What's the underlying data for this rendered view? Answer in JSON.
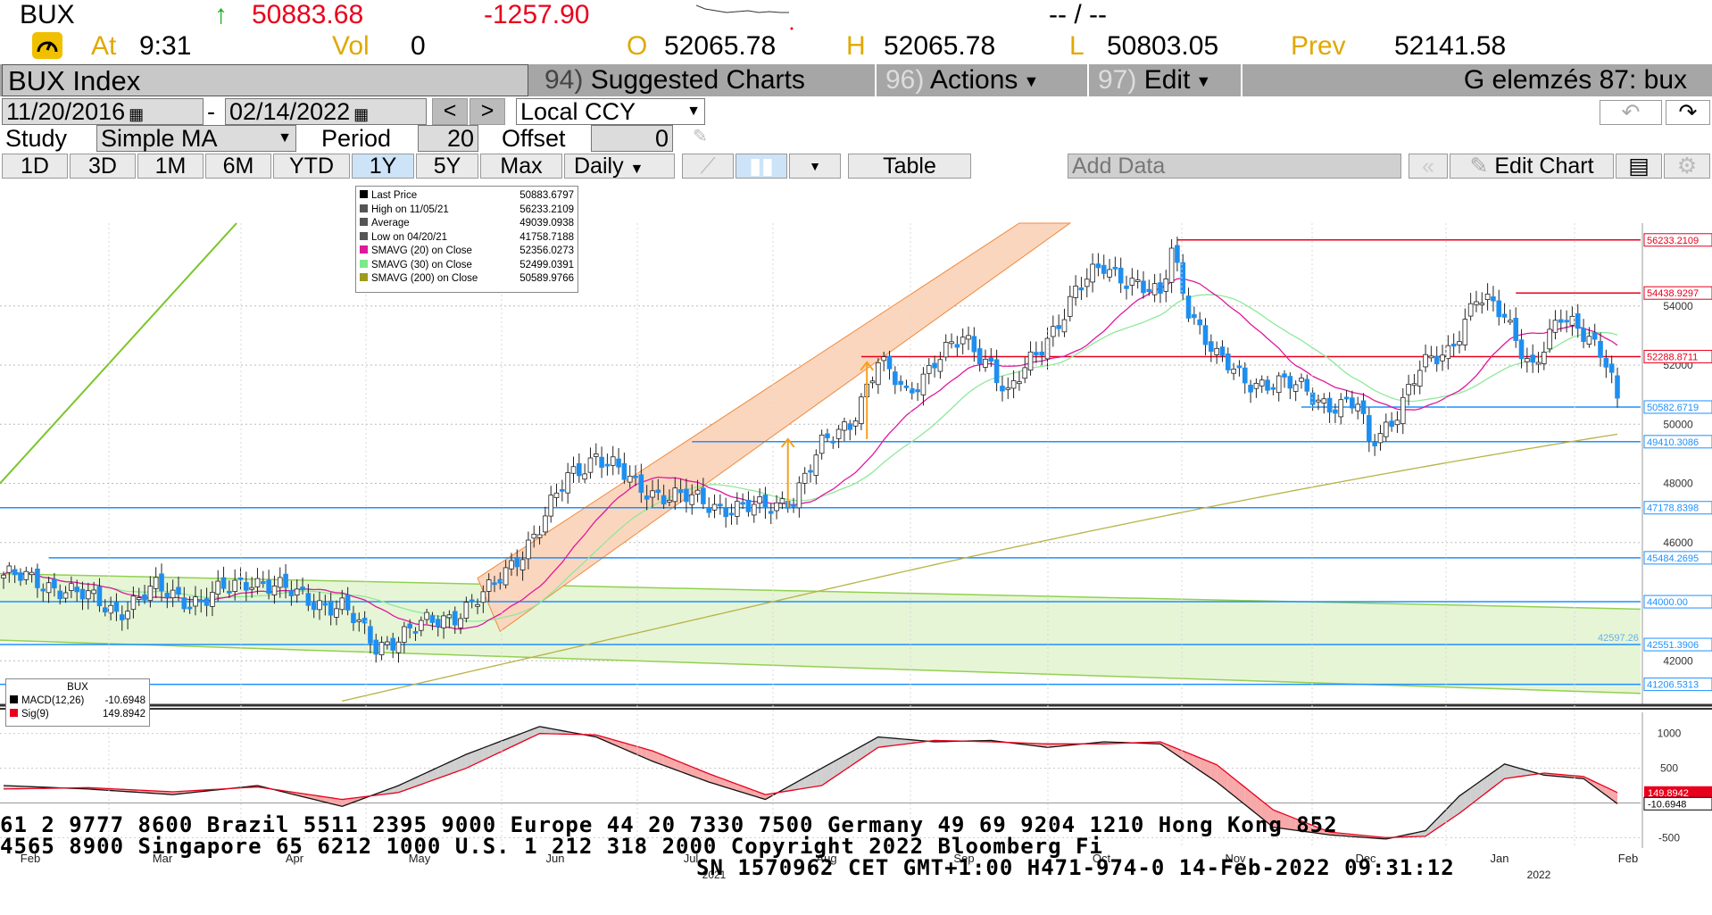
{
  "quote": {
    "ticker": "BUX",
    "last": "50883.68",
    "change": "-1257.90",
    "time_label": "At",
    "time": "9:31",
    "vol_label": "Vol",
    "vol": "0",
    "open_label": "O",
    "open": "52065.78",
    "high_label": "H",
    "high": "52065.78",
    "low_label": "L",
    "low": "50803.05",
    "prev_label": "Prev",
    "prev": "52141.58",
    "bidask": "-- / --",
    "up_arrow": "up-arrow-icon"
  },
  "menubar": {
    "title": "BUX Index",
    "suggested_num": "94)",
    "suggested": "Suggested Charts",
    "actions_num": "96)",
    "actions": "Actions",
    "edit_num": "97)",
    "edit": "Edit",
    "right_title": "G elemzés 87: bux"
  },
  "controls": {
    "start_date": "11/20/2016",
    "dash": "-",
    "end_date": "02/14/2022",
    "prev": "<",
    "next": ">",
    "currency": "Local CCY",
    "study_label": "Study",
    "study": "Simple MA",
    "period_label": "Period",
    "period": "20",
    "offset_label": "Offset",
    "offset": "0",
    "ranges": [
      "1D",
      "3D",
      "1M",
      "6M",
      "YTD",
      "1Y",
      "5Y",
      "Max"
    ],
    "selected_range": "1Y",
    "frequency": "Daily",
    "table": "Table",
    "add_data": "Add Data",
    "edit_chart": "Edit Chart"
  },
  "legend": [
    {
      "name": "Last Price",
      "value": "50883.6797",
      "color": "#000000"
    },
    {
      "name": "High on 11/05/21",
      "value": "56233.2109",
      "color": "#555555"
    },
    {
      "name": "Average",
      "value": "49039.0938",
      "color": "#555555"
    },
    {
      "name": "Low on 04/20/21",
      "value": "41758.7188",
      "color": "#555555"
    },
    {
      "name": "SMAVG (20)  on Close",
      "value": "52356.0273",
      "color": "#e0189b"
    },
    {
      "name": "SMAVG (30)  on Close",
      "value": "52499.0391",
      "color": "#7fe88a"
    },
    {
      "name": "SMAVG (200)  on Close",
      "value": "50589.9766",
      "color": "#9e9a1c"
    }
  ],
  "macd_legend": {
    "title": "BUX",
    "items": [
      {
        "name": "MACD(12,26)",
        "value": "-10.6948",
        "color": "#000000"
      },
      {
        "name": "Sig(9)",
        "value": "149.8942",
        "color": "#e8001c"
      }
    ]
  },
  "chart_data": {
    "type": "candlestick",
    "ylim": [
      40500,
      56800
    ],
    "yticks": [
      42000,
      44000,
      46000,
      48000,
      50000,
      52000,
      54000
    ],
    "months": [
      "Feb",
      "Mar",
      "Apr",
      "May",
      "Jun",
      "Jul",
      "Aug",
      "Sep",
      "Oct",
      "Nov",
      "Dec",
      "Jan",
      "Feb"
    ],
    "year_labels": [
      "2021",
      "2022"
    ],
    "price_labels": [
      {
        "value": 56233.2109,
        "text": "56233.2109",
        "color": "#e8001c"
      },
      {
        "value": 54438.9297,
        "text": "54438.9297",
        "color": "#e8001c"
      },
      {
        "value": 52288.8711,
        "text": "52288.8711",
        "color": "#e8001c"
      },
      {
        "value": 50582.6719,
        "text": "50582.6719",
        "color": "#1e90ff"
      },
      {
        "value": 49410.3086,
        "text": "49410.3086",
        "color": "#1e90ff"
      },
      {
        "value": 47178.8398,
        "text": "47178.8398",
        "color": "#1e90ff"
      },
      {
        "value": 45484.2695,
        "text": "45484.2695",
        "color": "#1e90ff"
      },
      {
        "value": 44000.0,
        "text": "44000.00",
        "color": "#1e90ff"
      },
      {
        "value": 42551.3906,
        "text": "42551.3906",
        "color": "#1e90ff"
      },
      {
        "value": 41206.5313,
        "text": "41206.5313",
        "color": "#1e90ff"
      }
    ],
    "extra_label": "42597.26",
    "close_path": [
      [
        0,
        44900
      ],
      [
        10,
        44500
      ],
      [
        20,
        43700
      ],
      [
        27,
        44400
      ],
      [
        35,
        44000
      ],
      [
        44,
        44800
      ],
      [
        52,
        44200
      ],
      [
        60,
        43800
      ],
      [
        66,
        42500
      ],
      [
        72,
        43000
      ],
      [
        80,
        43600
      ],
      [
        86,
        44300
      ],
      [
        95,
        46500
      ],
      [
        100,
        48200
      ],
      [
        105,
        49000
      ],
      [
        112,
        47900
      ],
      [
        118,
        47600
      ],
      [
        125,
        47300
      ],
      [
        130,
        47200
      ],
      [
        135,
        47100
      ],
      [
        140,
        47600
      ],
      [
        145,
        49200
      ],
      [
        150,
        50100
      ],
      [
        155,
        52100
      ],
      [
        160,
        51000
      ],
      [
        165,
        52200
      ],
      [
        170,
        52800
      ],
      [
        175,
        52100
      ],
      [
        178,
        51000
      ],
      [
        183,
        52300
      ],
      [
        190,
        54500
      ],
      [
        195,
        55300
      ],
      [
        200,
        54900
      ],
      [
        205,
        54200
      ],
      [
        207,
        55900
      ],
      [
        210,
        54000
      ],
      [
        215,
        52200
      ],
      [
        220,
        51500
      ],
      [
        225,
        51400
      ],
      [
        230,
        51200
      ],
      [
        235,
        50700
      ],
      [
        240,
        50600
      ],
      [
        242,
        49300
      ],
      [
        246,
        50200
      ],
      [
        251,
        51800
      ],
      [
        256,
        52500
      ],
      [
        261,
        54300
      ],
      [
        266,
        53600
      ],
      [
        271,
        52000
      ],
      [
        276,
        53500
      ],
      [
        281,
        53100
      ],
      [
        284,
        52200
      ],
      [
        286,
        50883
      ]
    ],
    "macd": {
      "ylim": [
        -650,
        1150
      ],
      "yticks": [
        1000,
        500,
        -500
      ],
      "macd_values": [
        [
          0,
          250
        ],
        [
          15,
          200
        ],
        [
          30,
          120
        ],
        [
          45,
          250
        ],
        [
          60,
          -50
        ],
        [
          70,
          250
        ],
        [
          82,
          700
        ],
        [
          95,
          1100
        ],
        [
          105,
          950
        ],
        [
          115,
          600
        ],
        [
          125,
          300
        ],
        [
          135,
          50
        ],
        [
          145,
          500
        ],
        [
          155,
          950
        ],
        [
          165,
          880
        ],
        [
          175,
          900
        ],
        [
          185,
          800
        ],
        [
          195,
          880
        ],
        [
          205,
          850
        ],
        [
          215,
          300
        ],
        [
          225,
          -350
        ],
        [
          235,
          -460
        ],
        [
          245,
          -520
        ],
        [
          252,
          -400
        ],
        [
          258,
          100
        ],
        [
          266,
          560
        ],
        [
          273,
          400
        ],
        [
          280,
          350
        ],
        [
          286,
          -11
        ]
      ],
      "signal_values": [
        [
          0,
          200
        ],
        [
          15,
          220
        ],
        [
          30,
          160
        ],
        [
          45,
          230
        ],
        [
          60,
          50
        ],
        [
          70,
          150
        ],
        [
          82,
          500
        ],
        [
          95,
          1000
        ],
        [
          105,
          980
        ],
        [
          115,
          750
        ],
        [
          125,
          420
        ],
        [
          135,
          120
        ],
        [
          145,
          250
        ],
        [
          155,
          800
        ],
        [
          165,
          900
        ],
        [
          175,
          880
        ],
        [
          185,
          850
        ],
        [
          195,
          850
        ],
        [
          205,
          880
        ],
        [
          215,
          550
        ],
        [
          225,
          -100
        ],
        [
          235,
          -420
        ],
        [
          245,
          -500
        ],
        [
          252,
          -480
        ],
        [
          258,
          -150
        ],
        [
          266,
          350
        ],
        [
          273,
          430
        ],
        [
          280,
          380
        ],
        [
          286,
          150
        ]
      ],
      "labels": [
        {
          "text": "149.8942",
          "color": "#e8001c"
        },
        {
          "text": "-10.6948",
          "color": "#000000"
        }
      ]
    }
  },
  "footer": {
    "line1": "61 2 9777 8600 Brazil 5511 2395 9000 Europe 44 20 7330 7500 Germany 49 69 9204 1210 Hong Kong 852",
    "line2": " 4565 8900       Singapore 65 6212 1000         U.S. 1 212 318 2000          Copyright 2022 Bloomberg Fi",
    "line3": "SN 1570962 CET  GMT+1:00 H471-974-0 14-Feb-2022 09:31:12"
  }
}
